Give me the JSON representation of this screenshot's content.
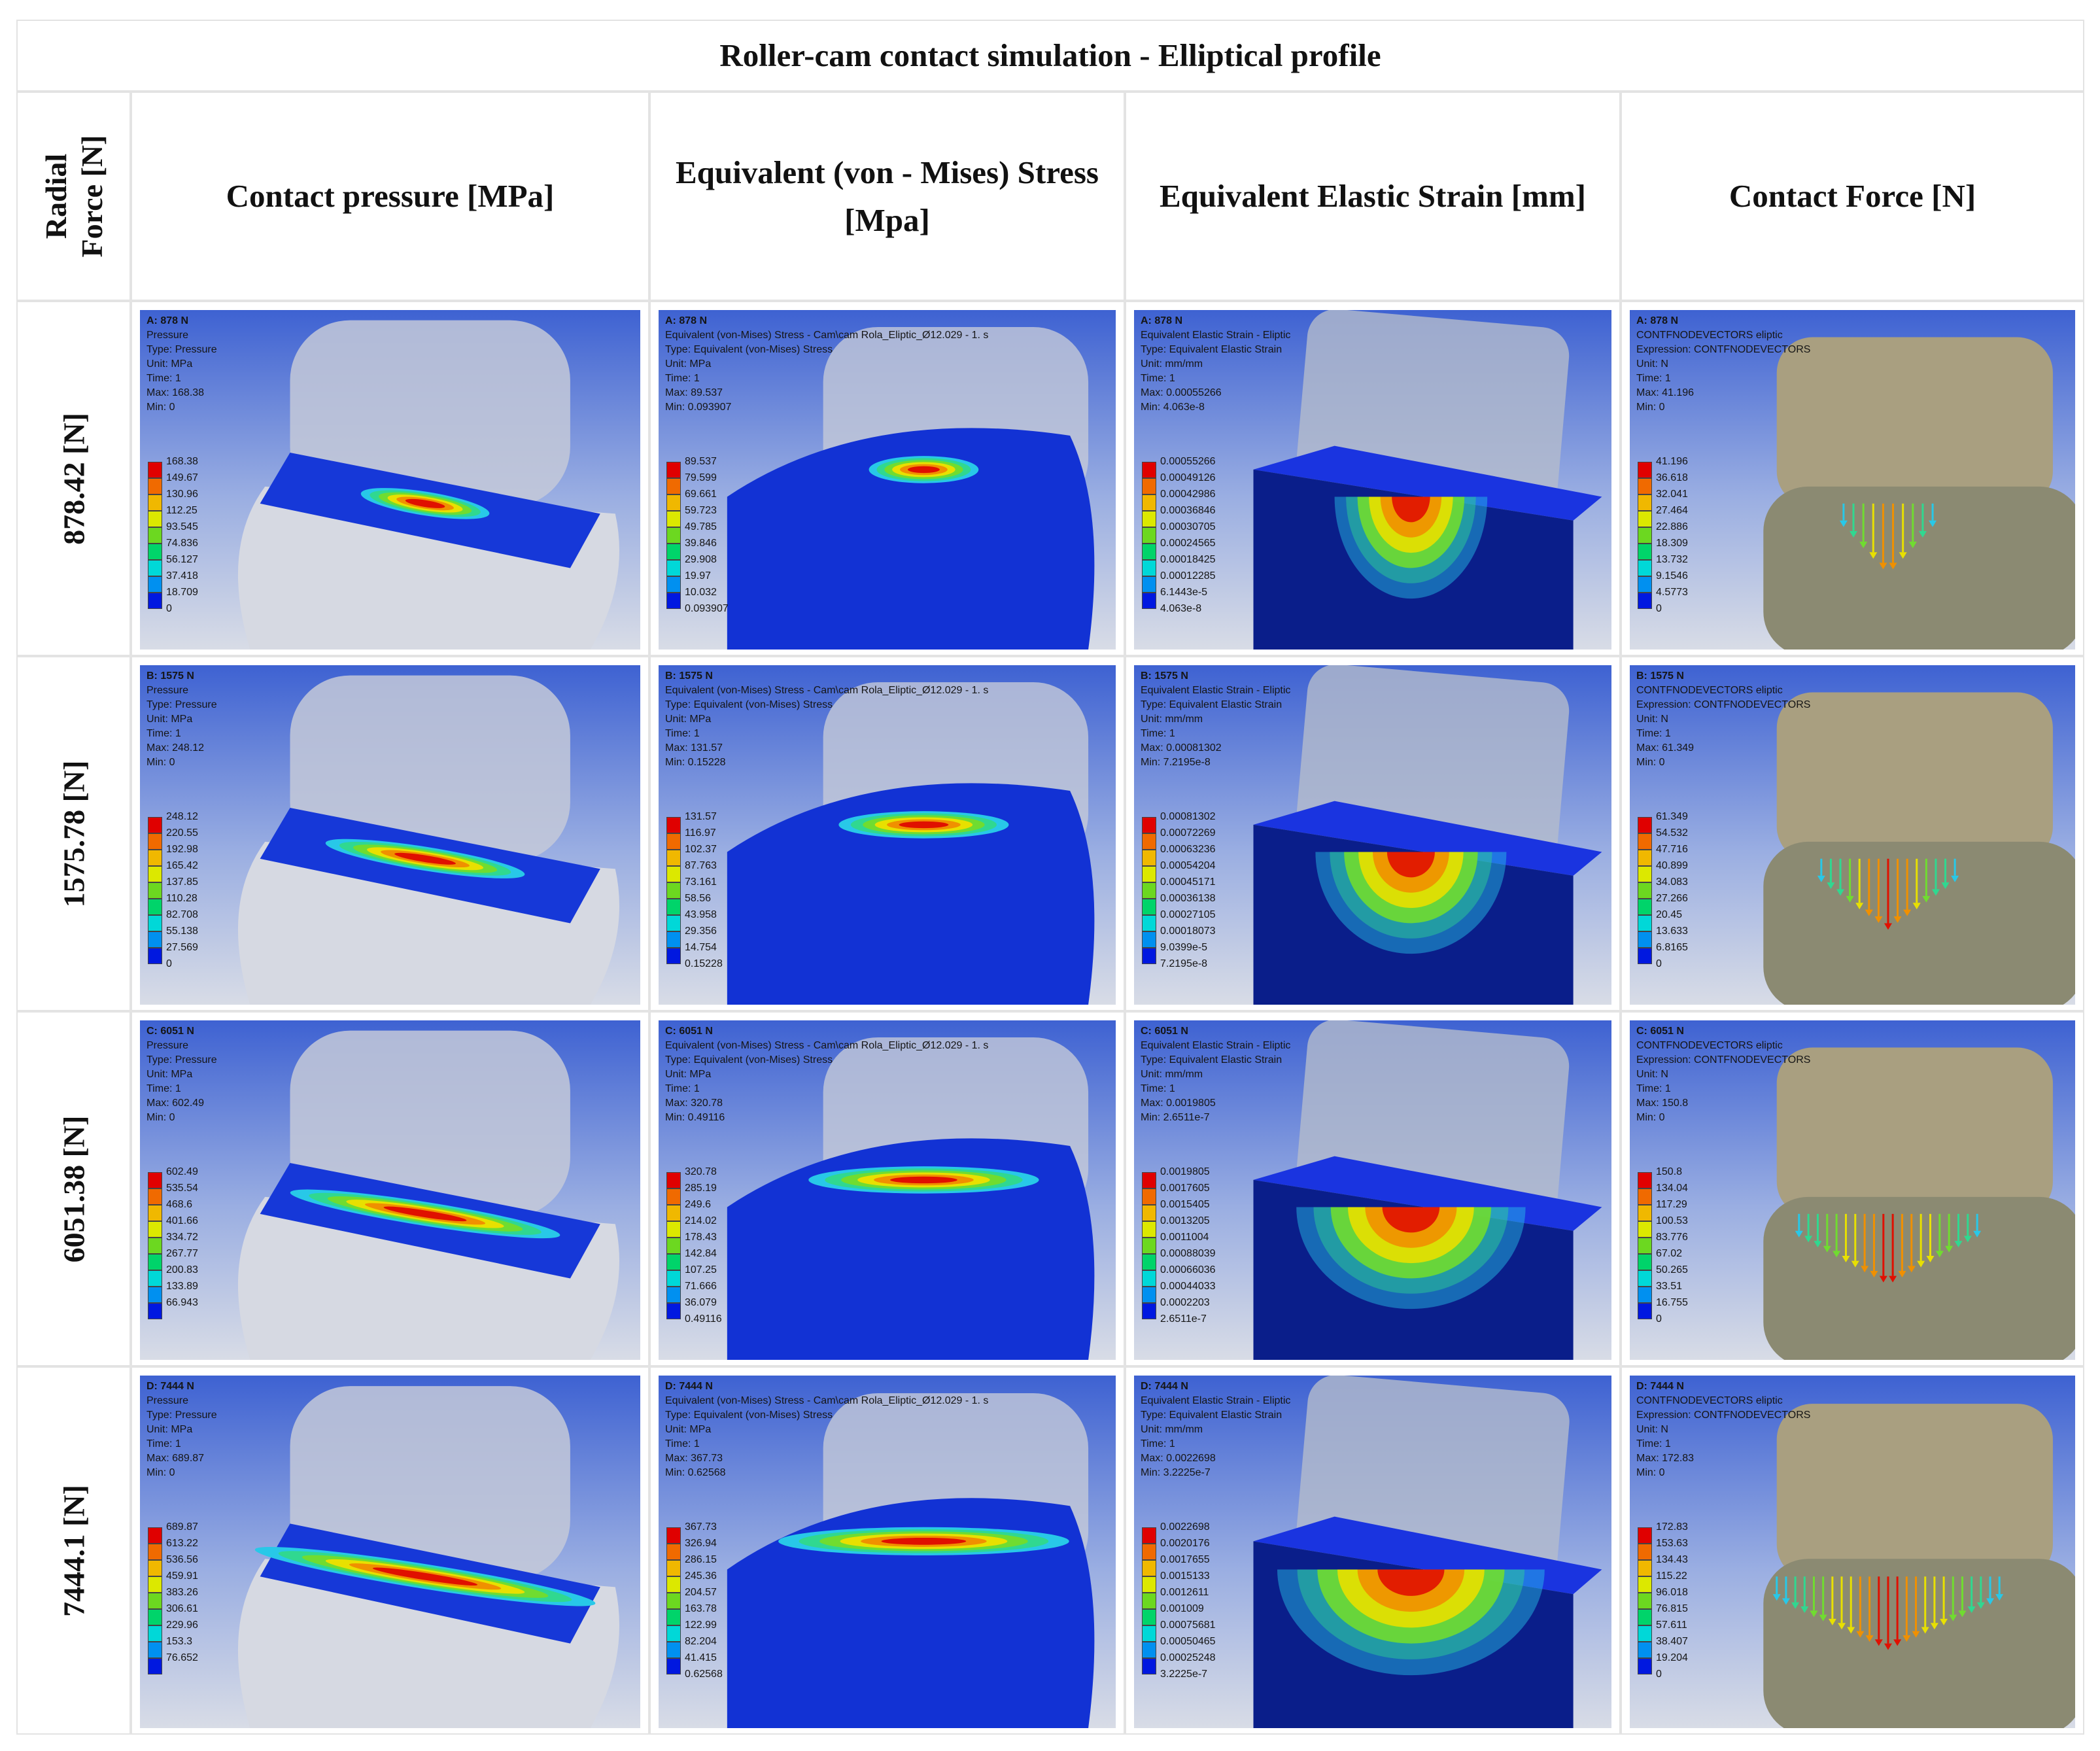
{
  "title": "Roller-cam contact simulation - Elliptical profile",
  "header": {
    "row_label": "Radial Force [N]",
    "columns": [
      "Contact pressure [MPa]",
      "Equivalent (von - Mises) Stress [Mpa]",
      "Equivalent Elastic Strain [mm]",
      "Contact Force [N]"
    ]
  },
  "rows": [
    {
      "label": "878.42 [N]",
      "panels": [
        {
          "info": [
            "A: 878 N",
            "Pressure",
            "Type: Pressure",
            "Unit: MPa",
            "Time: 1",
            "Max: 168.38",
            "Min: 0"
          ],
          "legend": [
            "168.38",
            "149.67",
            "130.96",
            "112.25",
            "93.545",
            "74.836",
            "56.127",
            "37.418",
            "18.709",
            "0"
          ]
        },
        {
          "info": [
            "A: 878 N",
            "Equivalent (von-Mises) Stress - Cam\\cam Rola_Eliptic_Ø12.029 - 1. s",
            "Type: Equivalent (von-Mises) Stress",
            "Unit: MPa",
            "Time: 1",
            "Max: 89.537",
            "Min: 0.093907"
          ],
          "legend": [
            "89.537",
            "79.599",
            "69.661",
            "59.723",
            "49.785",
            "39.846",
            "29.908",
            "19.97",
            "10.032",
            "0.093907"
          ]
        },
        {
          "info": [
            "A: 878 N",
            "Equivalent Elastic Strain - Eliptic",
            "Type: Equivalent Elastic Strain",
            "Unit: mm/mm",
            "Time: 1",
            "Max: 0.00055266",
            "Min: 4.063e-8"
          ],
          "legend": [
            "0.00055266",
            "0.00049126",
            "0.00042986",
            "0.00036846",
            "0.00030705",
            "0.00024565",
            "0.00018425",
            "0.00012285",
            "6.1443e-5",
            "4.063e-8"
          ]
        },
        {
          "info": [
            "A: 878 N",
            "CONTFNODEVECTORS eliptic",
            "Expression: CONTFNODEVECTORS",
            "Unit: N",
            "Time: 1",
            "Max: 41.196",
            "Min: 0"
          ],
          "legend": [
            "41.196",
            "36.618",
            "32.041",
            "27.464",
            "22.886",
            "18.309",
            "13.732",
            "9.1546",
            "4.5773",
            "0"
          ]
        }
      ]
    },
    {
      "label": "1575.78 [N]",
      "panels": [
        {
          "info": [
            "B: 1575 N",
            "Pressure",
            "Type: Pressure",
            "Unit: MPa",
            "Time: 1",
            "Max: 248.12",
            "Min: 0"
          ],
          "legend": [
            "248.12",
            "220.55",
            "192.98",
            "165.42",
            "137.85",
            "110.28",
            "82.708",
            "55.138",
            "27.569",
            "0"
          ]
        },
        {
          "info": [
            "B: 1575 N",
            "Equivalent (von-Mises) Stress - Cam\\cam Rola_Eliptic_Ø12.029 - 1. s",
            "Type: Equivalent (von-Mises) Stress",
            "Unit: MPa",
            "Time: 1",
            "Max: 131.57",
            "Min: 0.15228"
          ],
          "legend": [
            "131.57",
            "116.97",
            "102.37",
            "87.763",
            "73.161",
            "58.56",
            "43.958",
            "29.356",
            "14.754",
            "0.15228"
          ]
        },
        {
          "info": [
            "B: 1575 N",
            "Equivalent Elastic Strain - Eliptic",
            "Type: Equivalent Elastic Strain",
            "Unit: mm/mm",
            "Time: 1",
            "Max: 0.00081302",
            "Min: 7.2195e-8"
          ],
          "legend": [
            "0.00081302",
            "0.00072269",
            "0.00063236",
            "0.00054204",
            "0.00045171",
            "0.00036138",
            "0.00027105",
            "0.00018073",
            "9.0399e-5",
            "7.2195e-8"
          ]
        },
        {
          "info": [
            "B: 1575 N",
            "CONTFNODEVECTORS eliptic",
            "Expression: CONTFNODEVECTORS",
            "Unit: N",
            "Time: 1",
            "Max: 61.349",
            "Min: 0"
          ],
          "legend": [
            "61.349",
            "54.532",
            "47.716",
            "40.899",
            "34.083",
            "27.266",
            "20.45",
            "13.633",
            "6.8165",
            "0"
          ]
        }
      ]
    },
    {
      "label": "6051.38 [N]",
      "panels": [
        {
          "info": [
            "C: 6051 N",
            "Pressure",
            "Type: Pressure",
            "Unit: MPa",
            "Time: 1",
            "Max: 602.49",
            "Min: 0"
          ],
          "legend": [
            "602.49",
            "535.54",
            "468.6",
            "401.66",
            "334.72",
            "267.77",
            "200.83",
            "133.89",
            "66.943"
          ]
        },
        {
          "info": [
            "C: 6051 N",
            "Equivalent (von-Mises) Stress - Cam\\cam Rola_Eliptic_Ø12.029 - 1. s",
            "Type: Equivalent (von-Mises) Stress",
            "Unit: MPa",
            "Time: 1",
            "Max: 320.78",
            "Min: 0.49116"
          ],
          "legend": [
            "320.78",
            "285.19",
            "249.6",
            "214.02",
            "178.43",
            "142.84",
            "107.25",
            "71.666",
            "36.079",
            "0.49116"
          ]
        },
        {
          "info": [
            "C: 6051 N",
            "Equivalent Elastic Strain - Eliptic",
            "Type: Equivalent Elastic Strain",
            "Unit: mm/mm",
            "Time: 1",
            "Max: 0.0019805",
            "Min: 2.6511e-7"
          ],
          "legend": [
            "0.0019805",
            "0.0017605",
            "0.0015405",
            "0.0013205",
            "0.0011004",
            "0.00088039",
            "0.00066036",
            "0.00044033",
            "0.0002203",
            "2.6511e-7"
          ]
        },
        {
          "info": [
            "C: 6051 N",
            "CONTFNODEVECTORS eliptic",
            "Expression: CONTFNODEVECTORS",
            "Unit: N",
            "Time: 1",
            "Max: 150.8",
            "Min: 0"
          ],
          "legend": [
            "150.8",
            "134.04",
            "117.29",
            "100.53",
            "83.776",
            "67.02",
            "50.265",
            "33.51",
            "16.755",
            "0"
          ]
        }
      ]
    },
    {
      "label": "7444.1 [N]",
      "panels": [
        {
          "info": [
            "D: 7444 N",
            "Pressure",
            "Type: Pressure",
            "Unit: MPa",
            "Time: 1",
            "Max: 689.87",
            "Min: 0"
          ],
          "legend": [
            "689.87",
            "613.22",
            "536.56",
            "459.91",
            "383.26",
            "306.61",
            "229.96",
            "153.3",
            "76.652"
          ]
        },
        {
          "info": [
            "D: 7444 N",
            "Equivalent (von-Mises) Stress - Cam\\cam Rola_Eliptic_Ø12.029 - 1. s",
            "Type: Equivalent (von-Mises) Stress",
            "Unit: MPa",
            "Time: 1",
            "Max: 367.73",
            "Min: 0.62568"
          ],
          "legend": [
            "367.73",
            "326.94",
            "286.15",
            "245.36",
            "204.57",
            "163.78",
            "122.99",
            "82.204",
            "41.415",
            "0.62568"
          ]
        },
        {
          "info": [
            "D: 7444 N",
            "Equivalent Elastic Strain - Eliptic",
            "Type: Equivalent Elastic Strain",
            "Unit: mm/mm",
            "Time: 1",
            "Max: 0.0022698",
            "Min: 3.2225e-7"
          ],
          "legend": [
            "0.0022698",
            "0.0020176",
            "0.0017655",
            "0.0015133",
            "0.0012611",
            "0.001009",
            "0.00075681",
            "0.00050465",
            "0.00025248",
            "3.2225e-7"
          ]
        },
        {
          "info": [
            "D: 7444 N",
            "CONTFNODEVECTORS eliptic",
            "Expression: CONTFNODEVECTORS",
            "Unit: N",
            "Time: 1",
            "Max: 172.83",
            "Min: 0"
          ],
          "legend": [
            "172.83",
            "153.63",
            "134.43",
            "115.22",
            "96.018",
            "76.815",
            "57.611",
            "38.407",
            "19.204",
            "0"
          ]
        }
      ]
    }
  ]
}
